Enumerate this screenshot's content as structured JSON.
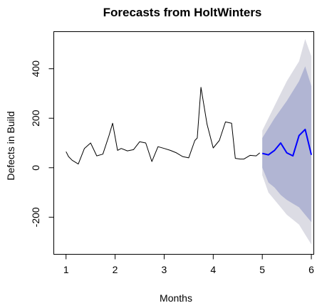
{
  "chart_data": {
    "type": "line",
    "title": "Forecasts from HoltWinters",
    "xlabel": "Months",
    "ylabel": "Defects in Build",
    "xlim": [
      0.75,
      6.05
    ],
    "ylim": [
      -350,
      550
    ],
    "xticks": [
      1,
      2,
      3,
      4,
      5,
      6
    ],
    "yticks": [
      -200,
      0,
      200,
      400
    ],
    "colors": {
      "observed": "#000000",
      "forecast": "#0000ff",
      "interval_95": "#dcdce4",
      "interval_80": "#b1b5d3"
    },
    "series": [
      {
        "x": [
          1.0,
          1.05,
          1.125,
          1.25,
          1.375,
          1.5,
          1.625,
          1.75,
          1.875,
          1.95,
          2.05,
          2.125,
          2.25,
          2.375,
          2.5,
          2.625,
          2.75,
          2.875,
          3.0,
          3.125,
          3.25,
          3.375,
          3.5,
          3.625,
          3.675,
          3.75,
          3.875,
          4.0,
          4.125,
          4.25,
          4.375,
          4.45,
          4.55,
          4.625,
          4.75,
          4.875,
          4.95
        ],
        "values": [
          65,
          45,
          30,
          15,
          78,
          100,
          48,
          55,
          130,
          180,
          70,
          78,
          68,
          73,
          105,
          100,
          25,
          85,
          78,
          70,
          60,
          45,
          40,
          110,
          120,
          325,
          175,
          80,
          110,
          185,
          180,
          38,
          35,
          35,
          50,
          48,
          60
        ]
      },
      {
        "x": [
          5.0,
          5.125,
          5.25,
          5.375,
          5.5,
          5.625,
          5.75,
          5.875,
          6.0
        ],
        "values": [
          58,
          52,
          70,
          100,
          60,
          48,
          130,
          155,
          52
        ]
      }
    ],
    "intervals": {
      "x": [
        5.0,
        5.125,
        5.25,
        5.375,
        5.5,
        5.625,
        5.75,
        5.875,
        6.0
      ],
      "upper_95": [
        150,
        200,
        250,
        300,
        350,
        390,
        430,
        520,
        450
      ],
      "lower_95": [
        -30,
        -100,
        -130,
        -160,
        -190,
        -210,
        -230,
        -270,
        -310
      ],
      "upper_80": [
        120,
        160,
        200,
        235,
        270,
        310,
        350,
        410,
        330
      ],
      "lower_80": [
        0,
        -60,
        -80,
        -110,
        -130,
        -145,
        -160,
        -190,
        -220
      ]
    }
  }
}
